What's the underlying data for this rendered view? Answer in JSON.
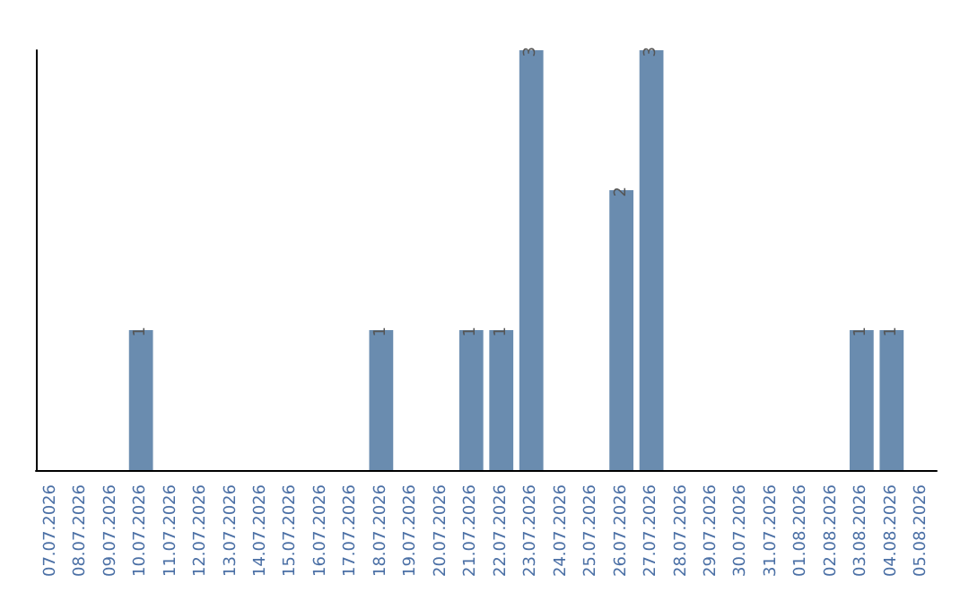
{
  "chart_data": {
    "type": "bar",
    "categories": [
      "07.07.2026",
      "08.07.2026",
      "09.07.2026",
      "10.07.2026",
      "11.07.2026",
      "12.07.2026",
      "13.07.2026",
      "14.07.2026",
      "15.07.2026",
      "16.07.2026",
      "17.07.2026",
      "18.07.2026",
      "19.07.2026",
      "20.07.2026",
      "21.07.2026",
      "22.07.2026",
      "23.07.2026",
      "24.07.2026",
      "25.07.2026",
      "26.07.2026",
      "27.07.2026",
      "28.07.2026",
      "29.07.2026",
      "30.07.2026",
      "31.07.2026",
      "01.08.2026",
      "02.08.2026",
      "03.08.2026",
      "04.08.2026",
      "05.08.2026"
    ],
    "values": [
      0,
      0,
      0,
      1,
      0,
      0,
      0,
      0,
      0,
      0,
      0,
      1,
      0,
      0,
      1,
      1,
      3,
      0,
      0,
      2,
      3,
      0,
      0,
      0,
      0,
      0,
      0,
      1,
      1,
      0
    ],
    "value_labels": [
      null,
      null,
      null,
      "1",
      null,
      null,
      null,
      null,
      null,
      null,
      null,
      "1",
      null,
      null,
      "1",
      "1",
      "3",
      null,
      null,
      "2",
      "3",
      null,
      null,
      null,
      null,
      null,
      null,
      "1",
      "1",
      null
    ],
    "color": "#6a8caf",
    "tick_labels": "x",
    "ylim": [
      0,
      3
    ]
  }
}
